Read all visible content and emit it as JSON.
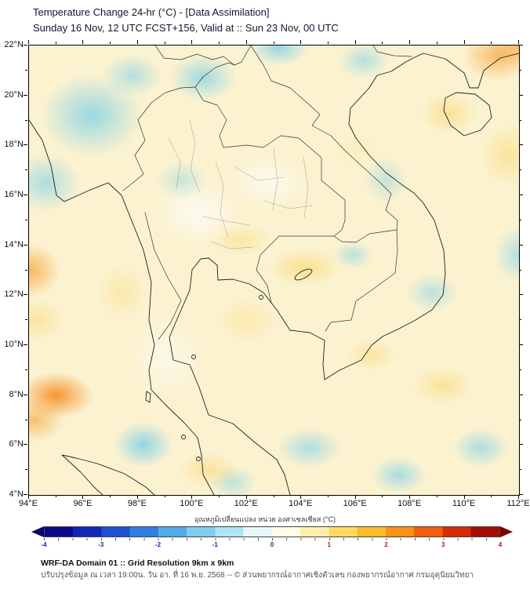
{
  "header": {
    "title": "Temperature Change 24-hr (°C) - [Data Assimilation]",
    "subtitle": "Sunday 16 Nov, 12 UTC FCST+156, Valid at :: Sun 23 Nov, 00 UTC"
  },
  "axes": {
    "lat_ticks": [
      "22°N",
      "20°N",
      "18°N",
      "16°N",
      "14°N",
      "12°N",
      "10°N",
      "8°N",
      "6°N",
      "4°N"
    ],
    "lon_ticks": [
      "94°E",
      "96°E",
      "98°E",
      "100°E",
      "102°E",
      "104°E",
      "106°E",
      "108°E",
      "110°E",
      "112°E"
    ],
    "lat_range": [
      4,
      22
    ],
    "lon_range": [
      94,
      112
    ]
  },
  "colorbar": {
    "label": "อุณหภูมิเปลี่ยนแปลง หน่วย องศาเซลเซียส (°C)",
    "ticks": [
      "-4",
      "-3",
      "-2",
      "-1",
      "0",
      "1",
      "2",
      "3",
      "4"
    ],
    "min": -4,
    "max": 4,
    "colors": [
      "#0a0a8c",
      "#1326b4",
      "#1e50d2",
      "#2e7fe0",
      "#52ace8",
      "#7fcdee",
      "#aee4f4",
      "#e8f7fa",
      "#fffbe6",
      "#ffeeaa",
      "#ffd95e",
      "#ffbc2a",
      "#fb9116",
      "#f2600d",
      "#d62b08",
      "#a50d05"
    ],
    "left_arrow_color": "#07076e",
    "right_arrow_color": "#7d0202",
    "negative_label_color": "#1a1ab0",
    "positive_label_color": "#b01515",
    "zero_label_color": "#333333"
  },
  "footer": {
    "line1": "WRF-DA Domain 01 :: Grid Resolution 9km x 9km",
    "line2": "ปรับปรุงข้อมูล ณ เวลา 19:00น. วัน อา. ที่ 16 พ.ย. 2568 -- © ส่วนพยากรณ์อากาศเชิงตัวเลข กองพยากรณ์อากาศ กรมอุตุนิยมวิทยา"
  },
  "map_field": {
    "description": "24-hr temperature change anomaly field over Thailand / Indochina; cool (cyan) patches NW Myanmar, N Thailand, N Vietnam, lower Andaman and SE corner; warm (orange/yellow) patches NE corner, W edge near 13N, SW corner near 8N, central Cambodia band",
    "base_color": "#fbf2d0",
    "palette": {
      "cyan": "110,205,235",
      "orange": "248,170,70",
      "deeporange": "244,140,30",
      "yellow": "250,215,110",
      "paleyellow": "251,235,170",
      "white": "253,252,245"
    },
    "blobs": [
      [
        "cyan",
        96.3,
        19.2,
        2.6,
        2.3,
        0.7
      ],
      [
        "cyan",
        94.6,
        16.5,
        1.8,
        1.6,
        0.55
      ],
      [
        "cyan",
        97.8,
        20.8,
        1.5,
        1.2,
        0.5
      ],
      [
        "cyan",
        100.4,
        20.7,
        1.7,
        1.3,
        0.65
      ],
      [
        "cyan",
        103.2,
        21.9,
        1.5,
        1.0,
        0.7
      ],
      [
        "cyan",
        106.3,
        21.4,
        1.3,
        1.0,
        0.5
      ],
      [
        "orange",
        111.2,
        21.6,
        1.8,
        1.4,
        0.75
      ],
      [
        "yellow",
        109.4,
        19.3,
        1.5,
        1.2,
        0.6
      ],
      [
        "yellow",
        111.6,
        17.6,
        1.4,
        1.8,
        0.55
      ],
      [
        "paleyellow",
        106.0,
        17.8,
        1.4,
        1.0,
        0.45
      ],
      [
        "orange",
        94.1,
        13.0,
        1.5,
        1.5,
        0.8
      ],
      [
        "yellow",
        94.3,
        11.0,
        1.5,
        1.2,
        0.5
      ],
      [
        "deeporange",
        95.0,
        8.0,
        1.9,
        1.3,
        0.9
      ],
      [
        "orange",
        94.2,
        7.0,
        1.5,
        1.2,
        0.7
      ],
      [
        "cyan",
        98.2,
        6.0,
        1.5,
        1.3,
        0.75
      ],
      [
        "yellow",
        104.1,
        13.1,
        1.9,
        1.1,
        0.65
      ],
      [
        "yellow",
        101.8,
        14.2,
        1.6,
        0.9,
        0.45
      ],
      [
        "cyan",
        105.9,
        13.6,
        1.0,
        0.8,
        0.45
      ],
      [
        "cyan",
        108.8,
        12.1,
        1.3,
        1.1,
        0.45
      ],
      [
        "cyan",
        104.3,
        5.9,
        1.6,
        1.1,
        0.55
      ],
      [
        "cyan",
        107.6,
        4.8,
        1.4,
        1.0,
        0.6
      ],
      [
        "cyan",
        110.6,
        5.9,
        1.4,
        1.1,
        0.55
      ],
      [
        "yellow",
        109.2,
        8.4,
        1.6,
        1.1,
        0.55
      ],
      [
        "yellow",
        100.6,
        5.0,
        1.6,
        1.0,
        0.55
      ],
      [
        "yellow",
        97.4,
        12.1,
        1.3,
        1.6,
        0.4
      ],
      [
        "cyan",
        99.6,
        16.6,
        1.3,
        1.1,
        0.35
      ],
      [
        "cyan",
        107.1,
        16.6,
        1.1,
        1.3,
        0.4
      ],
      [
        "cyan",
        112.0,
        13.6,
        1.3,
        1.6,
        0.5
      ],
      [
        "yellow",
        106.6,
        9.6,
        1.3,
        0.9,
        0.5
      ],
      [
        "yellow",
        102.0,
        11.0,
        1.6,
        1.3,
        0.35
      ],
      [
        "cyan",
        101.5,
        4.5,
        1.2,
        0.9,
        0.45
      ],
      [
        "orange",
        112.0,
        22.0,
        1.5,
        1.2,
        0.7
      ],
      [
        "white",
        100.2,
        15.3,
        2.2,
        1.8,
        0.9
      ],
      [
        "white",
        102.8,
        16.5,
        2.0,
        1.5,
        0.8
      ],
      [
        "white",
        99.0,
        9.5,
        1.8,
        2.2,
        0.7
      ]
    ]
  }
}
